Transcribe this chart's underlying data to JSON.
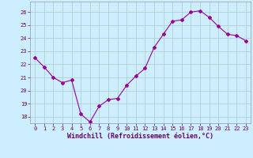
{
  "x": [
    0,
    1,
    2,
    3,
    4,
    5,
    6,
    7,
    8,
    9,
    10,
    11,
    12,
    13,
    14,
    15,
    16,
    17,
    18,
    19,
    20,
    21,
    22,
    23
  ],
  "y": [
    22.5,
    21.8,
    21.0,
    20.6,
    20.8,
    18.2,
    17.6,
    18.8,
    19.3,
    19.4,
    20.4,
    21.1,
    21.7,
    23.3,
    24.3,
    25.3,
    25.4,
    26.0,
    26.1,
    25.6,
    24.9,
    24.3,
    24.2,
    23.8
  ],
  "line_color": "#990099",
  "marker": "D",
  "marker_size": 2.0,
  "bg_color": "#cceeff",
  "grid_color": "#aacccc",
  "xlabel": "Windchill (Refroidissement éolien,°C)",
  "xlabel_color": "#660066",
  "tick_color": "#660066",
  "ylim": [
    17.5,
    26.8
  ],
  "xlim": [
    -0.5,
    23.5
  ],
  "yticks": [
    18,
    19,
    20,
    21,
    22,
    23,
    24,
    25,
    26
  ],
  "xticks": [
    0,
    1,
    2,
    3,
    4,
    5,
    6,
    7,
    8,
    9,
    10,
    11,
    12,
    13,
    14,
    15,
    16,
    17,
    18,
    19,
    20,
    21,
    22,
    23
  ],
  "tick_fontsize": 5.0,
  "xlabel_fontsize": 6.0
}
